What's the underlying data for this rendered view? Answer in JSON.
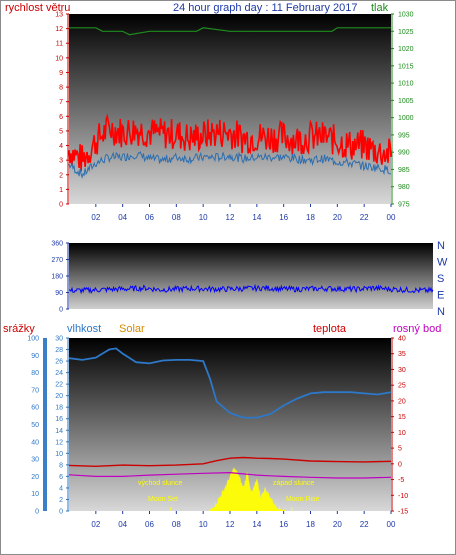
{
  "title": "24 hour graph day : 11 February 2017",
  "colors": {
    "wind": "#ff0000",
    "gust": "#ff0000",
    "wind_avg": "#2d6fb0",
    "pressure": "#1e8c1e",
    "direction": "#0000ff",
    "humidity": "#2d78c8",
    "temperature": "#cc0000",
    "dewpoint": "#c000c0",
    "solar": "#ffff00",
    "rain": "#3a7fc8",
    "title": "#1e3aa8",
    "solar_label": "#d48b00"
  },
  "chart_data": [
    {
      "type": "line",
      "name": "wind-pressure",
      "title": "24 hour graph day : 11 February 2017",
      "ylabel_left": "rychlost větru",
      "ylabel_right": "tlak",
      "yticks_left": [
        "0",
        "1",
        "2",
        "3",
        "4",
        "5",
        "6",
        "7",
        "8",
        "9",
        "10",
        "11",
        "12",
        "13"
      ],
      "yticks_right": [
        "975",
        "980",
        "985",
        "990",
        "995",
        "1000",
        "1005",
        "1010",
        "1015",
        "1020",
        "1025",
        "1030"
      ],
      "xticks": [
        "02",
        "04",
        "06",
        "08",
        "10",
        "12",
        "14",
        "16",
        "18",
        "20",
        "22",
        "00"
      ],
      "ylim_left": [
        0,
        13
      ],
      "ylim_right": [
        975,
        1030
      ],
      "series": [
        {
          "name": "gust",
          "x": [
            0,
            1,
            2,
            3,
            4,
            5,
            6,
            7,
            8,
            9,
            10,
            11,
            12,
            13,
            14,
            15,
            16,
            17,
            18,
            19,
            20,
            21,
            22,
            23,
            24
          ],
          "values": [
            3.7,
            3.0,
            4.3,
            5.2,
            4.9,
            5.1,
            4.9,
            4.8,
            4.8,
            4.5,
            4.7,
            4.9,
            4.9,
            4.5,
            4.6,
            4.6,
            4.6,
            4.4,
            4.6,
            4.6,
            4.3,
            4.0,
            4.0,
            3.6,
            3.4
          ]
        },
        {
          "name": "wind",
          "x": [
            0,
            1,
            2,
            3,
            4,
            5,
            6,
            7,
            8,
            9,
            10,
            11,
            12,
            13,
            14,
            15,
            16,
            17,
            18,
            19,
            20,
            21,
            22,
            23,
            24
          ],
          "values": [
            2.7,
            2.0,
            2.8,
            3.2,
            3.2,
            3.4,
            3.1,
            3.0,
            3.2,
            3.1,
            3.2,
            3.2,
            3.3,
            3.1,
            3.2,
            3.2,
            3.2,
            3.1,
            3.0,
            3.1,
            2.9,
            2.8,
            2.6,
            2.5,
            2.3
          ]
        },
        {
          "name": "pressure",
          "x": [
            0,
            2,
            2.5,
            4,
            4.5,
            6,
            8,
            9.5,
            10,
            12,
            14,
            16,
            18,
            19.6,
            20,
            22,
            24
          ],
          "values": [
            1026,
            1026,
            1025,
            1025,
            1024,
            1025,
            1025,
            1025,
            1026,
            1025,
            1025,
            1025,
            1025,
            1025,
            1026,
            1026,
            1026
          ]
        }
      ]
    },
    {
      "type": "scatter",
      "name": "wind-direction",
      "yticks": [
        "0",
        "90",
        "180",
        "270",
        "360"
      ],
      "ylim": [
        0,
        360
      ],
      "compass_labels": [
        "N",
        "W",
        "S",
        "E",
        "N"
      ],
      "series": [
        {
          "name": "direction",
          "x": [
            0,
            1,
            2,
            3,
            4,
            5,
            6,
            7,
            8,
            9,
            10,
            11,
            12,
            13,
            14,
            15,
            16,
            17,
            18,
            19,
            20,
            21,
            22,
            23,
            24
          ],
          "values": [
            100,
            102,
            105,
            108,
            110,
            115,
            105,
            108,
            112,
            110,
            108,
            110,
            112,
            115,
            110,
            108,
            110,
            112,
            110,
            108,
            115,
            110,
            105,
            102,
            100
          ]
        }
      ]
    },
    {
      "type": "line",
      "name": "humidity-temp-solar",
      "labels": {
        "rain": "srážky",
        "humidity": "vlhkost",
        "solar": "Solar",
        "temperature": "teplota",
        "dewpoint": "rosný bod"
      },
      "yticks_rain": [
        "0",
        "10",
        "20",
        "30",
        "40",
        "50",
        "60",
        "70",
        "80",
        "90",
        "100"
      ],
      "yticks_humidity": [
        "0",
        "2",
        "4",
        "6",
        "8",
        "10",
        "12",
        "14",
        "16",
        "18",
        "20",
        "22",
        "24",
        "26",
        "28",
        "30"
      ],
      "yticks_temp": [
        "-15",
        "-10",
        "-5",
        "0",
        "5",
        "10",
        "15",
        "20",
        "25",
        "30",
        "35",
        "40"
      ],
      "ylim_humidity": [
        0,
        30
      ],
      "ylim_temp": [
        -15,
        40
      ],
      "annotations": [
        "východ slunce",
        "západ slunce",
        "Moon Set",
        "Moon Rise"
      ],
      "series": [
        {
          "name": "humidity",
          "x": [
            0,
            1,
            2,
            3,
            3.5,
            4,
            5,
            6,
            7,
            8,
            9,
            10,
            10.5,
            11,
            12,
            13,
            14,
            15,
            16,
            17,
            18,
            19,
            20,
            21,
            22,
            23,
            24
          ],
          "values": [
            26.5,
            26.2,
            26.6,
            28,
            28.2,
            27.3,
            25.8,
            25.6,
            26.1,
            26.2,
            26.2,
            26,
            23,
            19,
            17,
            16.2,
            16.2,
            16.8,
            18.3,
            19.5,
            20.4,
            20.6,
            20.6,
            20.6,
            20.4,
            20.2,
            20.6
          ]
        },
        {
          "name": "temperature",
          "x": [
            0,
            2,
            4,
            6,
            8,
            10,
            11,
            12,
            13,
            14,
            15,
            16,
            18,
            20,
            22,
            24
          ],
          "values": [
            -0.5,
            -0.8,
            -0.4,
            -0.6,
            -0.4,
            0,
            1,
            1.8,
            2,
            1.8,
            1.7,
            1.5,
            0.9,
            0.7,
            0.6,
            0.8
          ]
        },
        {
          "name": "dewpoint",
          "x": [
            0,
            2,
            4,
            6,
            8,
            10,
            12,
            13,
            14,
            15,
            16,
            18,
            20,
            22,
            24
          ],
          "values": [
            -3.5,
            -4,
            -4,
            -3.6,
            -3.3,
            -3,
            -2.8,
            -3.2,
            -3.6,
            -3.8,
            -4,
            -4.3,
            -4.5,
            -4.5,
            -4.3
          ]
        },
        {
          "name": "solar",
          "x": [
            10.5,
            11,
            11.5,
            12,
            12.3,
            12.6,
            13,
            13.3,
            13.6,
            14,
            14.3,
            14.6,
            15,
            15.3,
            15.7,
            16,
            16.2
          ],
          "values": [
            0,
            1.5,
            3.5,
            6,
            7.5,
            6.5,
            4,
            7,
            3,
            5.5,
            2.5,
            4,
            2.5,
            1.2,
            0.5,
            0.2,
            0
          ]
        }
      ]
    }
  ]
}
